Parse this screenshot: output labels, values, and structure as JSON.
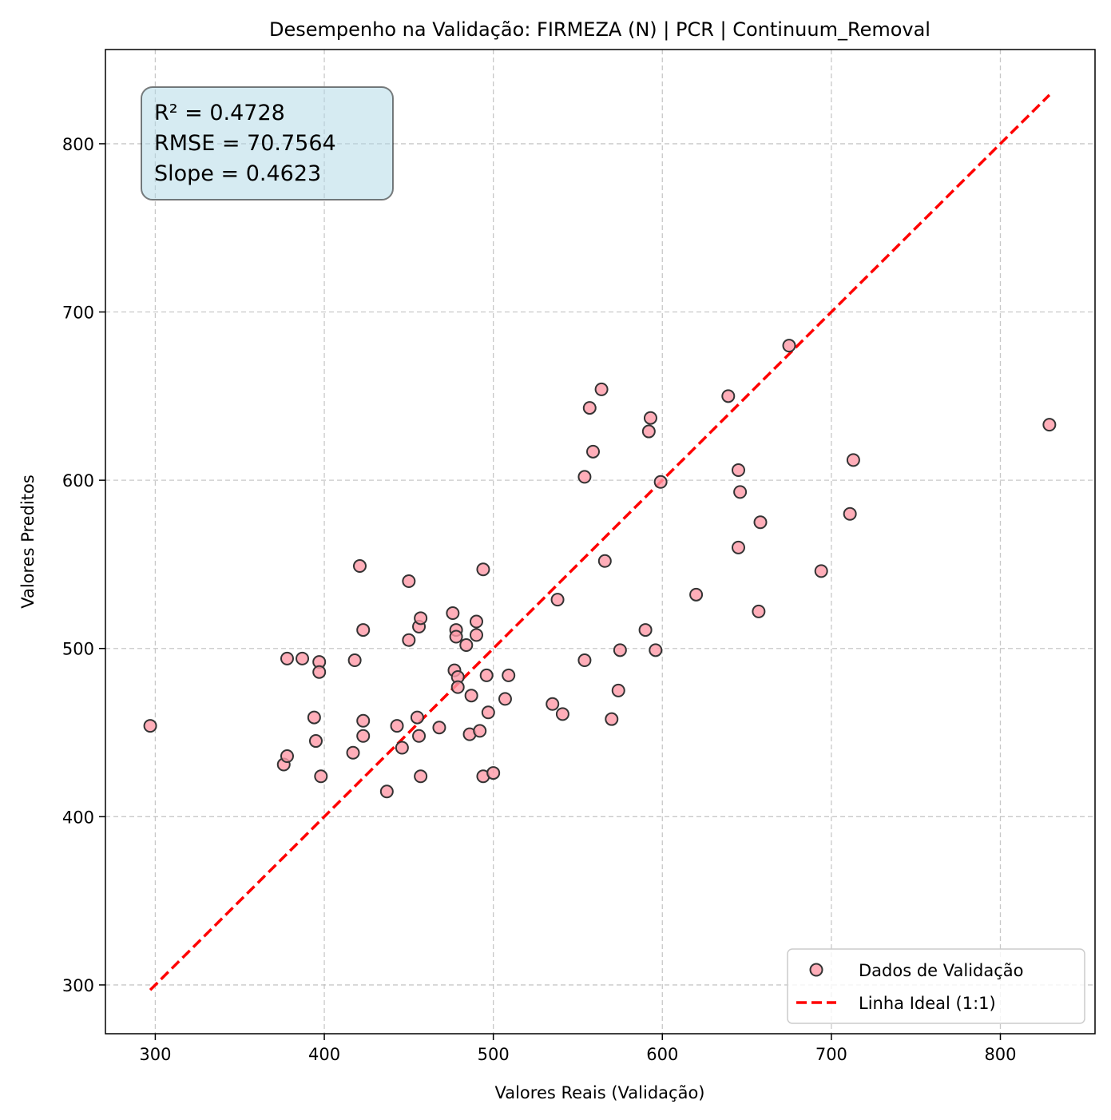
{
  "chart_data": {
    "type": "scatter",
    "title": "Desempenho na Validação: FIRMEZA (N) | PCR | Continuum_Removal",
    "xlabel": "Valores Reais (Validação)",
    "ylabel": "Valores Preditos",
    "xlim": [
      270.5,
      856
    ],
    "ylim": [
      271,
      856
    ],
    "xticks": [
      "300",
      "400",
      "500",
      "600",
      "700",
      "800"
    ],
    "yticks": [
      "300",
      "400",
      "500",
      "600",
      "700",
      "800"
    ],
    "grid": true,
    "legend_position": "lower-right",
    "stats": [
      "R² = 0.4728",
      "RMSE = 70.7564",
      "Slope = 0.4623"
    ],
    "series": [
      {
        "name": "Dados de Validação",
        "marker": "circle",
        "fill": "#ff9aa8",
        "stroke": "#333333",
        "points": [
          [
            297,
            454
          ],
          [
            376,
            431
          ],
          [
            378,
            436
          ],
          [
            378,
            494
          ],
          [
            387,
            494
          ],
          [
            394,
            459
          ],
          [
            395,
            445
          ],
          [
            397,
            492
          ],
          [
            397,
            486
          ],
          [
            398,
            424
          ],
          [
            417,
            438
          ],
          [
            418,
            493
          ],
          [
            421,
            549
          ],
          [
            423,
            511
          ],
          [
            423,
            457
          ],
          [
            423,
            448
          ],
          [
            437,
            415
          ],
          [
            443,
            454
          ],
          [
            446,
            441
          ],
          [
            450,
            540
          ],
          [
            450,
            505
          ],
          [
            455,
            459
          ],
          [
            456,
            448
          ],
          [
            456,
            513
          ],
          [
            457,
            518
          ],
          [
            457,
            424
          ],
          [
            468,
            453
          ],
          [
            476,
            521
          ],
          [
            477,
            487
          ],
          [
            478,
            511
          ],
          [
            478,
            507
          ],
          [
            479,
            483
          ],
          [
            479,
            477
          ],
          [
            484,
            502
          ],
          [
            486,
            449
          ],
          [
            487,
            472
          ],
          [
            490,
            516
          ],
          [
            490,
            508
          ],
          [
            492,
            451
          ],
          [
            494,
            547
          ],
          [
            494,
            424
          ],
          [
            496,
            484
          ],
          [
            497,
            462
          ],
          [
            500,
            426
          ],
          [
            507,
            470
          ],
          [
            509,
            484
          ],
          [
            535,
            467
          ],
          [
            538,
            529
          ],
          [
            541,
            461
          ],
          [
            554,
            602
          ],
          [
            554,
            493
          ],
          [
            557,
            643
          ],
          [
            559,
            617
          ],
          [
            564,
            654
          ],
          [
            566,
            552
          ],
          [
            570,
            458
          ],
          [
            574,
            475
          ],
          [
            575,
            499
          ],
          [
            590,
            511
          ],
          [
            592,
            629
          ],
          [
            593,
            637
          ],
          [
            596,
            499
          ],
          [
            599,
            599
          ],
          [
            620,
            532
          ],
          [
            639,
            650
          ],
          [
            645,
            606
          ],
          [
            645,
            560
          ],
          [
            646,
            593
          ],
          [
            657,
            522
          ],
          [
            658,
            575
          ],
          [
            675,
            680
          ],
          [
            694,
            546
          ],
          [
            711,
            580
          ],
          [
            713,
            612
          ],
          [
            829,
            633
          ]
        ]
      },
      {
        "name": "Linha Ideal (1:1)",
        "type": "line",
        "style": "dashed",
        "color": "#ff0000",
        "points": [
          [
            297,
            297
          ],
          [
            829,
            829
          ]
        ]
      }
    ]
  }
}
